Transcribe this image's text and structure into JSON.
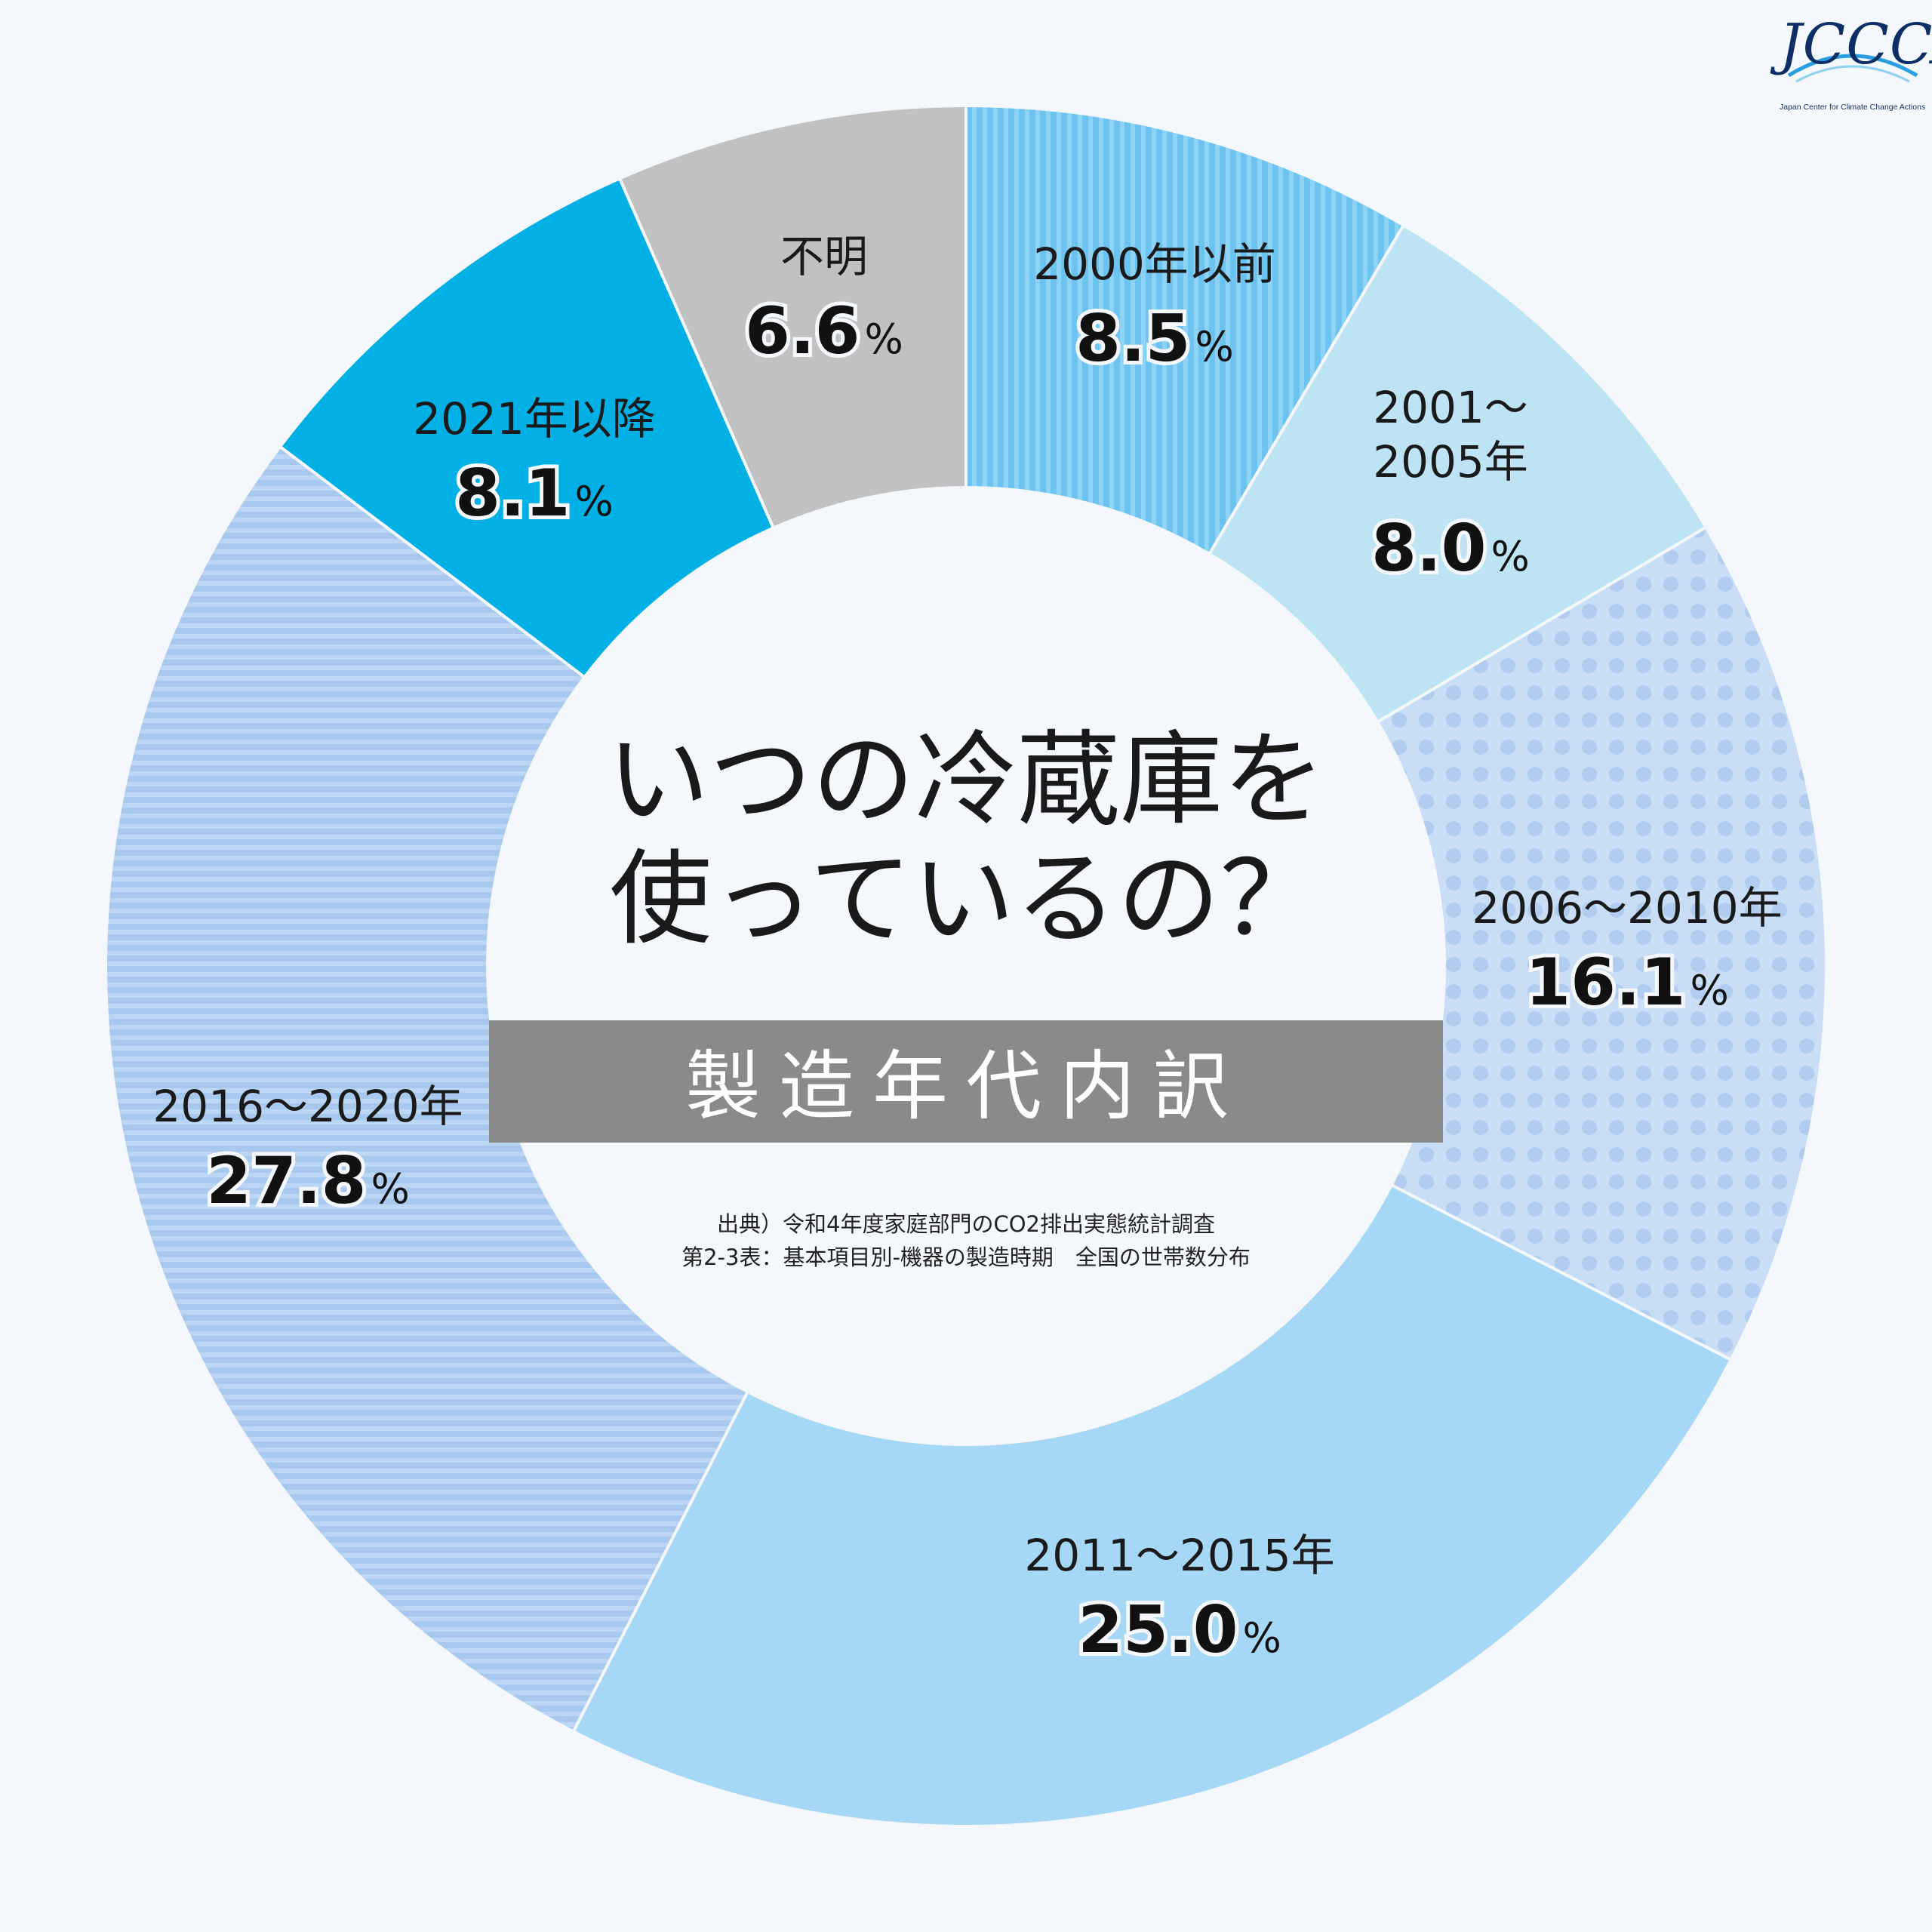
{
  "logo": {
    "mark": "JCCCA",
    "tagline": "Japan Center for Climate Change Actions"
  },
  "center": {
    "title_line1": "いつの冷蔵庫を",
    "title_line2": "使っているの？",
    "band": "製造年代内訳",
    "source_line1": "出典）令和4年度家庭部門のCO2排出実態統計調査",
    "source_line2": "第2-3表：基本項目別-機器の製造時期　全国の世帯数分布"
  },
  "colors": {
    "bg": "#f4f8fc",
    "center": "#f4f8fc",
    "band": "#8a8a8a",
    "divider": "#f4f8fc"
  },
  "chart_data": {
    "type": "pie",
    "unit": "%",
    "start": "top, clockwise",
    "slices": [
      {
        "label_lines": [
          "2000年以前"
        ],
        "value": 8.5,
        "value_text": "8.5",
        "color": "#6cc3f0",
        "pattern": "vertical-stripes"
      },
      {
        "label_lines": [
          "2001〜",
          "2005年"
        ],
        "value": 8.0,
        "value_text": "8.0",
        "color": "#bee4f4",
        "pattern": "solid"
      },
      {
        "label_lines": [
          "2006〜2010年"
        ],
        "value": 16.1,
        "value_text": "16.1",
        "color": "#c9def4",
        "pattern": "dots"
      },
      {
        "label_lines": [
          "2011〜2015年"
        ],
        "value": 25.0,
        "value_text": "25.0",
        "color": "#a6d7f4",
        "pattern": "solid"
      },
      {
        "label_lines": [
          "2016〜2020年"
        ],
        "value": 27.8,
        "value_text": "27.8",
        "color": "#a9c8ee",
        "pattern": "horizontal-stripes"
      },
      {
        "label_lines": [
          "2021年以降"
        ],
        "value": 8.1,
        "value_text": "8.1",
        "color": "#03b0e6",
        "pattern": "solid"
      },
      {
        "label_lines": [
          "不明"
        ],
        "value": 6.6,
        "value_text": "6.6",
        "color": "#c1c1c1",
        "pattern": "solid"
      }
    ]
  }
}
